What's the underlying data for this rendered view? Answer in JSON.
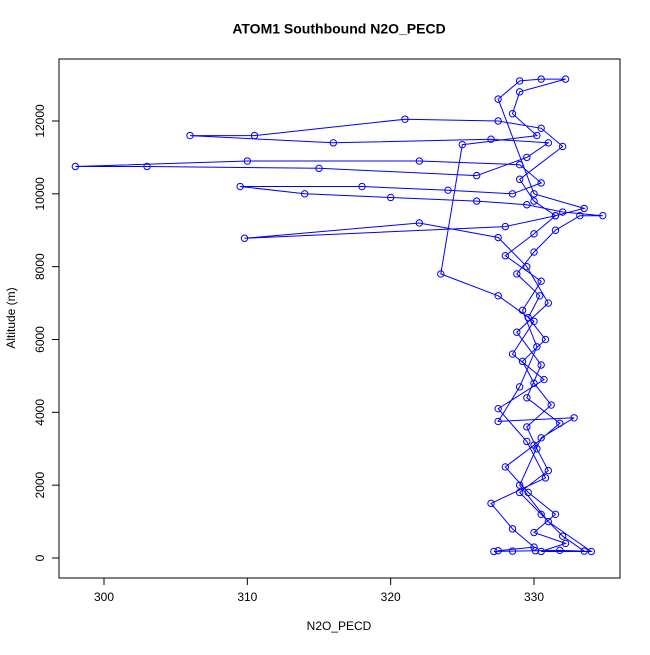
{
  "chart_data": {
    "type": "line",
    "title": "ATOM1 Southbound N2O_PECD",
    "x_label": "N2O_PECD",
    "y_label": "Altitude (m)",
    "color": "#0000ff",
    "markers": true,
    "xlim": [
      296.86,
      336.0
    ],
    "ylim": [
      -549,
      13702
    ],
    "xticks": [
      300,
      310,
      320,
      330
    ],
    "yticks": [
      0,
      2000,
      4000,
      6000,
      8000,
      10000,
      12000
    ],
    "x": [
      327.2,
      328.5,
      330.1,
      331.8,
      333.5,
      332.0,
      330.5,
      329.0,
      331.0,
      330.2,
      329.5,
      331.2,
      330.0,
      329.2,
      330.8,
      329.6,
      330.4,
      328.8,
      330.0,
      331.5,
      333.2,
      334.8,
      332.0,
      329.5,
      326.0,
      320.0,
      314.0,
      309.5,
      318.0,
      324.0,
      328.5,
      330.5,
      329.0,
      322.0,
      310.0,
      298.0,
      303.0,
      315.0,
      326.0,
      329.5,
      331.0,
      327.0,
      316.0,
      306.0,
      310.5,
      321.0,
      327.5,
      330.5,
      332.0,
      329.0,
      330.0,
      331.5,
      328.0,
      309.8,
      322.0,
      327.5,
      329.5,
      331.0,
      328.8,
      330.5,
      329.5,
      331.8,
      330.0,
      328.0,
      329.6,
      331.5,
      330.0,
      332.2,
      330.5,
      334.0,
      331.0,
      329.0,
      330.5,
      332.8,
      327.5,
      329.0,
      330.2,
      329.2,
      330.5,
      328.0,
      330.0,
      331.5,
      333.5,
      330.0,
      327.5,
      329.0,
      330.5,
      332.2,
      329.0,
      328.5,
      330.2,
      325.0,
      323.5,
      327.5,
      330.0,
      328.5,
      330.7,
      327.5,
      329.5,
      330.8,
      327.0,
      328.5,
      330.0,
      327.5
    ],
    "values": [
      180,
      190,
      200,
      210,
      190,
      600,
      1200,
      1800,
      2400,
      3000,
      3600,
      4200,
      4800,
      5400,
      6000,
      6600,
      7200,
      7800,
      8400,
      9000,
      9400,
      9400,
      9500,
      9700,
      9800,
      9900,
      10000,
      10200,
      10200,
      10100,
      10000,
      10300,
      10800,
      10900,
      10900,
      10750,
      10750,
      10700,
      10500,
      11000,
      11400,
      11500,
      11400,
      11600,
      11600,
      12050,
      12000,
      11800,
      11300,
      10400,
      9800,
      9400,
      9100,
      8780,
      9200,
      8800,
      8000,
      7000,
      6200,
      5300,
      4400,
      3700,
      3100,
      2500,
      1800,
      1200,
      700,
      400,
      180,
      180,
      1000,
      2000,
      3300,
      3850,
      3750,
      4700,
      5800,
      6800,
      7600,
      8300,
      8900,
      9400,
      9600,
      10000,
      12600,
      13100,
      13150,
      13150,
      12800,
      12200,
      11600,
      11350,
      7800,
      7200,
      6500,
      5600,
      4900,
      4100,
      3200,
      2200,
      1500,
      800,
      300,
      200
    ]
  }
}
